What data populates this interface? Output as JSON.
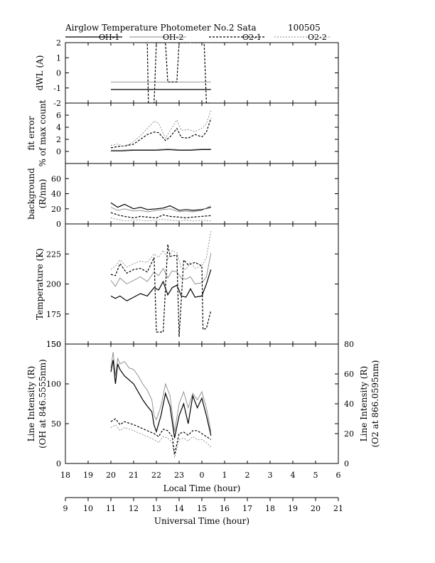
{
  "header": {
    "title": "Airglow Temperature Photometer No.2 Sata",
    "date_code": "100505"
  },
  "legend": [
    {
      "name": "OH-1",
      "color": "#000000",
      "dash": "",
      "width": 1.2
    },
    {
      "name": "OH-2",
      "color": "#888888",
      "dash": "",
      "width": 0.9
    },
    {
      "name": "O2-1",
      "color": "#000000",
      "dash": "3,2",
      "width": 1.2
    },
    {
      "name": "O2-2",
      "color": "#888888",
      "dash": "2,2",
      "width": 0.9
    }
  ],
  "axes": {
    "local_time_label": "Local Time (hour)",
    "universal_time_label": "Universal Time (hour)",
    "local_time_ticks": [
      "18",
      "19",
      "20",
      "21",
      "22",
      "23",
      "0",
      "1",
      "2",
      "3",
      "4",
      "5",
      "6"
    ],
    "universal_time_ticks": [
      "9",
      "10",
      "11",
      "12",
      "13",
      "14",
      "15",
      "16",
      "17",
      "18",
      "19",
      "20",
      "21"
    ]
  },
  "chart_data": [
    {
      "type": "line",
      "panel": "dwl",
      "ylabel": "dWL (A)",
      "ylim": [
        -2,
        2
      ],
      "yticks": [
        "-2",
        "-1",
        "0",
        "1",
        "2"
      ],
      "x_axis": "Local Time (hour)",
      "series": [
        {
          "name": "OH-1",
          "x": [
            20,
            24.4
          ],
          "values": [
            -1.1,
            -1.1
          ]
        },
        {
          "name": "OH-2",
          "x": [
            20,
            24.4
          ],
          "values": [
            -0.6,
            -0.6
          ]
        },
        {
          "name": "O2-1",
          "x": [
            21.5,
            21.6,
            21.65,
            21.9,
            22.0,
            22.05,
            22.4,
            22.5,
            22.55,
            22.9,
            23.0,
            23.05,
            24.1,
            24.2,
            24.3,
            24.4
          ],
          "values": [
            2.0,
            2.0,
            -2.0,
            -2.0,
            2.0,
            2.0,
            2.0,
            -0.6,
            -0.6,
            -0.6,
            2.0,
            2.0,
            2.0,
            -2.0,
            -2.0,
            -2.0
          ]
        },
        {
          "name": "O2-2",
          "x": [
            20,
            20.5,
            21,
            21.5,
            21.7,
            22.0,
            22.5,
            23.0,
            23.5,
            24.0,
            24.4
          ],
          "values": [
            2.0,
            2.1,
            2.0,
            2.1,
            2.0,
            2.1,
            2.0,
            2.1,
            2.0,
            2.1,
            2.0
          ]
        }
      ]
    },
    {
      "type": "line",
      "panel": "fit_error",
      "ylabel": "fit error",
      "ylabel2": "% of max count",
      "ylim": [
        -2,
        8
      ],
      "yticks": [
        "0",
        "2",
        "4",
        "6"
      ],
      "x_axis": "Local Time (hour)",
      "series": [
        {
          "name": "OH-1",
          "x": [
            20,
            20.5,
            21,
            21.5,
            22,
            22.5,
            23,
            23.5,
            24,
            24.4
          ],
          "values": [
            0.1,
            0.1,
            0.2,
            0.2,
            0.2,
            0.3,
            0.2,
            0.2,
            0.3,
            0.3
          ]
        },
        {
          "name": "OH-2",
          "x": [
            20,
            20.5,
            21,
            21.5,
            22,
            22.5,
            23,
            23.5,
            24,
            24.4
          ],
          "values": [
            0.2,
            0.2,
            0.3,
            0.3,
            0.3,
            0.4,
            0.3,
            0.3,
            0.4,
            0.4
          ]
        },
        {
          "name": "O2-1",
          "x": [
            20,
            20.3,
            20.6,
            21,
            21.3,
            21.6,
            21.9,
            22.1,
            22.4,
            22.6,
            22.9,
            23.1,
            23.4,
            23.7,
            24,
            24.2,
            24.4
          ],
          "values": [
            0.6,
            0.8,
            0.9,
            1.2,
            2.0,
            2.8,
            3.2,
            3.1,
            1.8,
            2.4,
            3.8,
            2.3,
            2.2,
            2.8,
            2.4,
            3.2,
            5.5
          ]
        },
        {
          "name": "O2-2",
          "x": [
            20,
            20.3,
            20.6,
            21,
            21.3,
            21.6,
            21.9,
            22.1,
            22.4,
            22.6,
            22.9,
            23.1,
            23.4,
            23.7,
            24,
            24.2,
            24.4
          ],
          "values": [
            1.0,
            1.2,
            0.8,
            1.6,
            2.6,
            3.8,
            5.0,
            4.7,
            2.2,
            3.4,
            5.2,
            3.5,
            3.6,
            3.3,
            3.8,
            4.6,
            6.8
          ]
        }
      ]
    },
    {
      "type": "line",
      "panel": "background",
      "ylabel": "background",
      "ylabel2": "(R/nm)",
      "ylim": [
        0,
        80
      ],
      "yticks": [
        "0",
        "20",
        "40",
        "60"
      ],
      "x_axis": "Local Time (hour)",
      "series": [
        {
          "name": "OH-1",
          "x": [
            20,
            20.3,
            20.6,
            21,
            21.3,
            21.6,
            22,
            22.3,
            22.6,
            23,
            23.3,
            23.6,
            24,
            24.4
          ],
          "values": [
            28,
            22,
            26,
            20,
            22,
            19,
            20,
            21,
            24,
            18,
            19,
            18,
            19,
            22
          ]
        },
        {
          "name": "OH-2",
          "x": [
            20,
            20.3,
            20.6,
            21,
            21.3,
            21.6,
            22,
            22.3,
            22.6,
            23,
            23.3,
            23.6,
            24,
            24.4
          ],
          "values": [
            22,
            18,
            20,
            17,
            18,
            16,
            18,
            19,
            20,
            16,
            17,
            16,
            18,
            24
          ]
        },
        {
          "name": "O2-1",
          "x": [
            20,
            20.3,
            20.6,
            21,
            21.3,
            21.6,
            22,
            22.3,
            22.6,
            23,
            23.3,
            23.6,
            24,
            24.4
          ],
          "values": [
            15,
            12,
            10,
            8,
            10,
            9,
            8,
            12,
            10,
            9,
            8,
            9,
            10,
            11
          ]
        },
        {
          "name": "O2-2",
          "x": [
            20,
            20.3,
            20.6,
            21,
            21.3,
            21.6,
            22,
            22.3,
            22.6,
            23,
            23.3,
            23.6,
            24,
            24.4
          ],
          "values": [
            8,
            6,
            4,
            5,
            5,
            4,
            5,
            6,
            5,
            4,
            5,
            4,
            5,
            4
          ]
        }
      ]
    },
    {
      "type": "line",
      "panel": "temperature",
      "ylabel": "Temperature (K)",
      "ylim": [
        150,
        250
      ],
      "yticks": [
        "150",
        "175",
        "200",
        "225"
      ],
      "x_axis": "Local Time (hour)",
      "series": [
        {
          "name": "OH-1",
          "x": [
            20,
            20.2,
            20.4,
            20.7,
            21,
            21.3,
            21.6,
            21.9,
            22.1,
            22.3,
            22.5,
            22.7,
            22.9,
            23.1,
            23.3,
            23.5,
            23.7,
            24,
            24.2,
            24.4
          ],
          "values": [
            190,
            188,
            190,
            186,
            189,
            192,
            190,
            197,
            195,
            202,
            191,
            197,
            199,
            190,
            189,
            196,
            189,
            190,
            200,
            212
          ]
        },
        {
          "name": "OH-2",
          "x": [
            20,
            20.2,
            20.4,
            20.7,
            21,
            21.3,
            21.6,
            21.9,
            22.1,
            22.3,
            22.5,
            22.7,
            22.9,
            23.1,
            23.3,
            23.5,
            23.7,
            24,
            24.2,
            24.4
          ],
          "values": [
            203,
            198,
            205,
            200,
            203,
            206,
            202,
            210,
            207,
            213,
            205,
            211,
            210,
            205,
            204,
            206,
            200,
            201,
            206,
            226
          ]
        },
        {
          "name": "O2-1",
          "x": [
            20,
            20.2,
            20.4,
            20.7,
            21,
            21.3,
            21.6,
            21.9,
            22.0,
            22.3,
            22.5,
            22.6,
            22.9,
            23.0,
            23.2,
            23.4,
            23.7,
            24,
            24.05,
            24.2,
            24.4
          ],
          "values": [
            208,
            207,
            217,
            209,
            212,
            213,
            210,
            222,
            160,
            160,
            233,
            223,
            224,
            156,
            220,
            216,
            218,
            215,
            162,
            163,
            178
          ]
        },
        {
          "name": "O2-2",
          "x": [
            20,
            20.2,
            20.4,
            20.7,
            21,
            21.3,
            21.6,
            21.9,
            22.1,
            22.3,
            22.5,
            22.7,
            22.9,
            23.1,
            23.3,
            23.5,
            23.7,
            24,
            24.2,
            24.4
          ],
          "values": [
            212,
            215,
            220,
            214,
            217,
            219,
            218,
            225,
            222,
            228,
            221,
            228,
            226,
            213,
            212,
            218,
            213,
            215,
            222,
            244
          ]
        }
      ]
    },
    {
      "type": "line",
      "panel": "line_intensity",
      "ylabel": "Line Intensity (R)",
      "ylabel2": "(OH at 846.5555nm)",
      "ylabel_right": "Line Intensity (R)",
      "ylabel_right2": "(O2 at 866.0595nm)",
      "ylim": [
        0,
        150
      ],
      "ylim_right": [
        0,
        80
      ],
      "yticks": [
        "0",
        "50",
        "100",
        "150"
      ],
      "yticks_right": [
        "0",
        "20",
        "40",
        "60",
        "80"
      ],
      "x_axis": "Local Time (hour)",
      "series": [
        {
          "name": "OH-1",
          "axis": "left",
          "x": [
            20,
            20.1,
            20.2,
            20.3,
            20.4,
            20.6,
            20.8,
            21,
            21.2,
            21.4,
            21.6,
            21.8,
            21.9,
            22.0,
            22.2,
            22.4,
            22.6,
            22.8,
            23.0,
            23.2,
            23.4,
            23.6,
            23.8,
            24,
            24.2,
            24.4
          ],
          "values": [
            115,
            130,
            100,
            125,
            118,
            110,
            105,
            100,
            90,
            80,
            72,
            65,
            48,
            40,
            60,
            88,
            72,
            32,
            60,
            75,
            50,
            85,
            70,
            82,
            60,
            35
          ]
        },
        {
          "name": "OH-2",
          "axis": "left",
          "x": [
            20,
            20.1,
            20.2,
            20.3,
            20.4,
            20.6,
            20.8,
            21,
            21.2,
            21.4,
            21.6,
            21.8,
            21.9,
            22.0,
            22.2,
            22.4,
            22.6,
            22.8,
            23.0,
            23.2,
            23.4,
            23.6,
            23.8,
            24,
            24.2,
            24.4
          ],
          "values": [
            120,
            140,
            110,
            132,
            125,
            128,
            120,
            118,
            110,
            100,
            92,
            80,
            60,
            55,
            72,
            100,
            85,
            40,
            75,
            90,
            70,
            88,
            80,
            90,
            70,
            40
          ]
        },
        {
          "name": "O2-1",
          "axis": "right",
          "x": [
            20,
            20.2,
            20.4,
            20.6,
            20.8,
            21,
            21.3,
            21.6,
            21.9,
            22.1,
            22.3,
            22.5,
            22.7,
            22.8,
            23.0,
            23.2,
            23.4,
            23.6,
            23.8,
            24,
            24.2,
            24.4
          ],
          "values": [
            28,
            30,
            26,
            28,
            27,
            26,
            24,
            22,
            20,
            18,
            23,
            22,
            18,
            6,
            20,
            21,
            19,
            22,
            22,
            20,
            18,
            16
          ]
        },
        {
          "name": "O2-2",
          "axis": "right",
          "x": [
            20,
            20.2,
            20.4,
            20.6,
            20.8,
            21,
            21.3,
            21.6,
            21.9,
            22.1,
            22.3,
            22.5,
            22.7,
            22.8,
            23.0,
            23.2,
            23.4,
            23.6,
            23.8,
            24,
            24.2,
            24.4
          ],
          "values": [
            24,
            26,
            22,
            24,
            23,
            22,
            20,
            18,
            16,
            14,
            18,
            17,
            14,
            4,
            16,
            17,
            15,
            18,
            16,
            16,
            14,
            11
          ]
        }
      ]
    }
  ]
}
